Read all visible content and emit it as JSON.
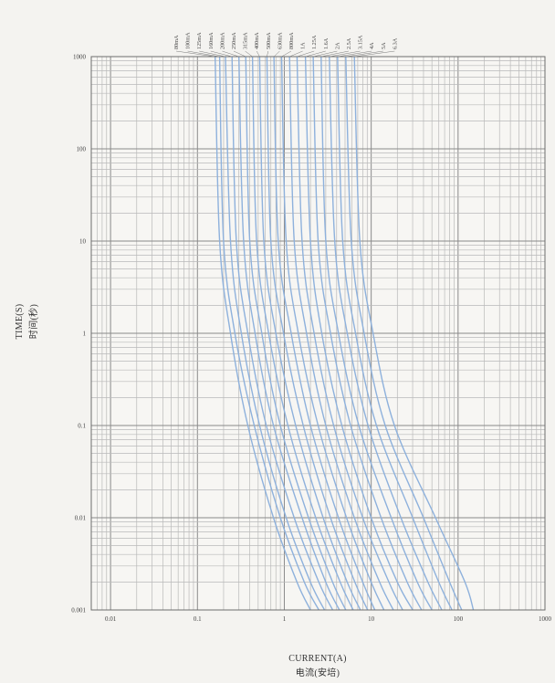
{
  "chart_data": {
    "type": "line",
    "title": "",
    "xlabel": "CURRENT(A)",
    "xlabel_cn": "电流(安培)",
    "ylabel": "TIME(S)",
    "ylabel_cn": "时间(秒)",
    "xscale": "log",
    "yscale": "log",
    "xlim": [
      0.006,
      1000
    ],
    "ylim": [
      0.001,
      1000
    ],
    "grid": true,
    "line_color": "#8eb1dc",
    "x_ticks": [
      {
        "value": 0.01,
        "label": "0.01"
      },
      {
        "value": 0.1,
        "label": "0.1"
      },
      {
        "value": 1,
        "label": "1"
      },
      {
        "value": 10,
        "label": "10"
      },
      {
        "value": 100,
        "label": "100"
      },
      {
        "value": 1000,
        "label": "1000"
      }
    ],
    "y_ticks": [
      {
        "value": 0.001,
        "label": "0.001"
      },
      {
        "value": 0.01,
        "label": "0.01"
      },
      {
        "value": 0.1,
        "label": "0.1"
      },
      {
        "value": 1,
        "label": "1"
      },
      {
        "value": 10,
        "label": "10"
      },
      {
        "value": 100,
        "label": "100"
      },
      {
        "value": 1000,
        "label": "1000"
      }
    ],
    "series": [
      {
        "name": "80mA",
        "x": [
          0.16,
          0.18,
          0.24,
          0.38,
          0.75,
          1.4,
          2.0
        ],
        "y": [
          1000,
          10,
          1,
          0.1,
          0.01,
          0.002,
          0.001
        ]
      },
      {
        "name": "100mA",
        "x": [
          0.18,
          0.2,
          0.27,
          0.45,
          0.9,
          1.7,
          2.5
        ],
        "y": [
          1000,
          10,
          1,
          0.1,
          0.01,
          0.002,
          0.001
        ]
      },
      {
        "name": "125mA",
        "x": [
          0.21,
          0.24,
          0.32,
          0.52,
          1.05,
          2.0,
          2.9
        ],
        "y": [
          1000,
          10,
          1,
          0.1,
          0.01,
          0.002,
          0.001
        ]
      },
      {
        "name": "160mA",
        "x": [
          0.25,
          0.28,
          0.38,
          0.62,
          1.3,
          2.5,
          3.6
        ],
        "y": [
          1000,
          10,
          1,
          0.1,
          0.01,
          0.002,
          0.001
        ]
      },
      {
        "name": "200mA",
        "x": [
          0.3,
          0.34,
          0.46,
          0.75,
          1.6,
          3.0,
          4.3
        ],
        "y": [
          1000,
          10,
          1,
          0.1,
          0.01,
          0.002,
          0.001
        ]
      },
      {
        "name": "250mA",
        "x": [
          0.36,
          0.4,
          0.55,
          0.9,
          1.9,
          3.6,
          5.1
        ],
        "y": [
          1000,
          10,
          1,
          0.1,
          0.01,
          0.002,
          0.001
        ]
      },
      {
        "name": "315mA",
        "x": [
          0.43,
          0.48,
          0.66,
          1.1,
          2.3,
          4.4,
          6.2
        ],
        "y": [
          1000,
          10,
          1,
          0.1,
          0.01,
          0.002,
          0.001
        ]
      },
      {
        "name": "400mA",
        "x": [
          0.52,
          0.58,
          0.8,
          1.35,
          2.8,
          5.3,
          7.5
        ],
        "y": [
          1000,
          10,
          1,
          0.1,
          0.01,
          0.002,
          0.001
        ]
      },
      {
        "name": "500mA",
        "x": [
          0.63,
          0.7,
          0.98,
          1.65,
          3.4,
          6.5,
          9.1
        ],
        "y": [
          1000,
          10,
          1,
          0.1,
          0.01,
          0.002,
          0.001
        ]
      },
      {
        "name": "630mA",
        "x": [
          0.76,
          0.85,
          1.2,
          2.0,
          4.2,
          8.0,
          11
        ],
        "y": [
          1000,
          10,
          1,
          0.1,
          0.01,
          0.002,
          0.001
        ]
      },
      {
        "name": "800mA",
        "x": [
          0.93,
          1.05,
          1.45,
          2.45,
          5.2,
          10,
          14
        ],
        "y": [
          1000,
          10,
          1,
          0.1,
          0.01,
          0.002,
          0.001
        ]
      },
      {
        "name": "1A",
        "x": [
          1.15,
          1.3,
          1.8,
          3.0,
          6.4,
          12.5,
          18
        ],
        "y": [
          1000,
          10,
          1,
          0.1,
          0.01,
          0.002,
          0.001
        ]
      },
      {
        "name": "1.25A",
        "x": [
          1.4,
          1.6,
          2.2,
          3.7,
          8.0,
          16,
          23
        ],
        "y": [
          1000,
          10,
          1,
          0.1,
          0.01,
          0.002,
          0.001
        ]
      },
      {
        "name": "1.6A",
        "x": [
          1.75,
          2.0,
          2.7,
          4.6,
          10,
          20,
          30
        ],
        "y": [
          1000,
          10,
          1,
          0.1,
          0.01,
          0.002,
          0.001
        ]
      },
      {
        "name": "2A",
        "x": [
          2.15,
          2.45,
          3.4,
          5.8,
          13,
          26,
          38
        ],
        "y": [
          1000,
          10,
          1,
          0.1,
          0.01,
          0.002,
          0.001
        ]
      },
      {
        "name": "2.5A",
        "x": [
          2.65,
          3.0,
          4.2,
          7.2,
          17,
          34,
          50
        ],
        "y": [
          1000,
          10,
          1,
          0.1,
          0.01,
          0.002,
          0.001
        ]
      },
      {
        "name": "3.15A",
        "x": [
          3.3,
          3.8,
          5.3,
          9.2,
          22,
          45,
          65
        ],
        "y": [
          1000,
          10,
          1,
          0.1,
          0.01,
          0.002,
          0.001
        ]
      },
      {
        "name": "4A",
        "x": [
          4.1,
          4.7,
          6.6,
          11.5,
          30,
          60,
          85
        ],
        "y": [
          1000,
          10,
          1,
          0.1,
          0.01,
          0.002,
          0.001
        ]
      },
      {
        "name": "5A",
        "x": [
          5.1,
          5.9,
          8.3,
          14.5,
          40,
          80,
          110
        ],
        "y": [
          1000,
          10,
          1,
          0.1,
          0.01,
          0.002,
          0.001
        ]
      },
      {
        "name": "6.3A",
        "x": [
          6.4,
          7.4,
          10.5,
          18.5,
          55,
          120,
          150
        ],
        "y": [
          1000,
          10,
          1,
          0.1,
          0.01,
          0.002,
          0.001
        ]
      }
    ]
  }
}
